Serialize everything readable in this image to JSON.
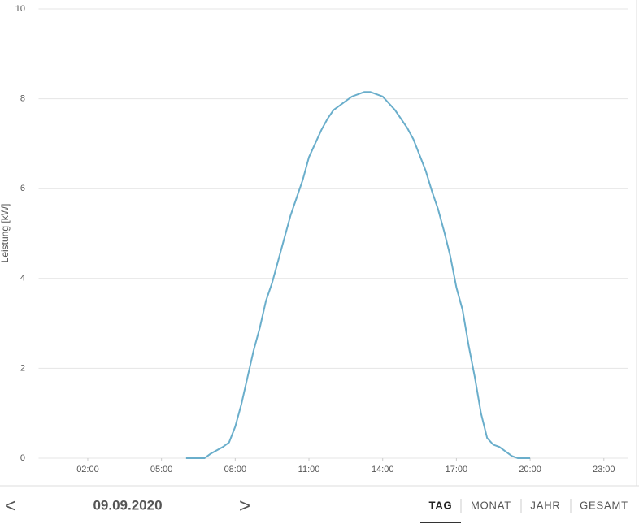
{
  "chart_data": {
    "type": "line",
    "y_label": "Leistung [kW]",
    "color": "#6aaecb",
    "grid": true,
    "x": [
      6,
      6.75,
      7,
      7.5,
      7.75,
      8,
      8.25,
      8.5,
      8.75,
      9,
      9.25,
      9.5,
      9.75,
      10,
      10.25,
      10.5,
      10.75,
      11,
      11.25,
      11.5,
      11.75,
      12,
      12.25,
      12.5,
      12.75,
      13,
      13.25,
      13.5,
      13.75,
      14,
      14.25,
      14.5,
      14.75,
      15,
      15.25,
      15.5,
      15.75,
      16,
      16.25,
      16.5,
      16.75,
      17,
      17.25,
      17.5,
      17.75,
      18,
      18.25,
      18.5,
      18.75,
      19,
      19.25,
      19.5,
      20
    ],
    "values": [
      0,
      0,
      0.1,
      0.25,
      0.35,
      0.7,
      1.2,
      1.8,
      2.4,
      2.9,
      3.5,
      3.9,
      4.4,
      4.9,
      5.4,
      5.8,
      6.2,
      6.7,
      7.0,
      7.3,
      7.55,
      7.75,
      7.85,
      7.95,
      8.05,
      8.1,
      8.15,
      8.15,
      8.1,
      8.05,
      7.9,
      7.75,
      7.55,
      7.35,
      7.1,
      6.75,
      6.4,
      5.95,
      5.55,
      5.05,
      4.5,
      3.8,
      3.3,
      2.5,
      1.8,
      1.0,
      0.45,
      0.3,
      0.25,
      0.15,
      0.05,
      0,
      0
    ],
    "xlim": [
      0,
      24
    ],
    "xticks": [
      {
        "value": 2,
        "label": "02:00"
      },
      {
        "value": 5,
        "label": "05:00"
      },
      {
        "value": 8,
        "label": "08:00"
      },
      {
        "value": 11,
        "label": "11:00"
      },
      {
        "value": 14,
        "label": "14:00"
      },
      {
        "value": 17,
        "label": "17:00"
      },
      {
        "value": 20,
        "label": "20:00"
      },
      {
        "value": 23,
        "label": "23:00"
      }
    ],
    "ylim": [
      0,
      10
    ],
    "yticks": [
      0,
      2,
      4,
      6,
      8,
      10
    ]
  },
  "navigation": {
    "prev": "<",
    "date": "09.09.2020",
    "next": ">",
    "tabs": [
      "TAG",
      "MONAT",
      "JAHR",
      "GESAMT"
    ],
    "active_tab": 0
  }
}
